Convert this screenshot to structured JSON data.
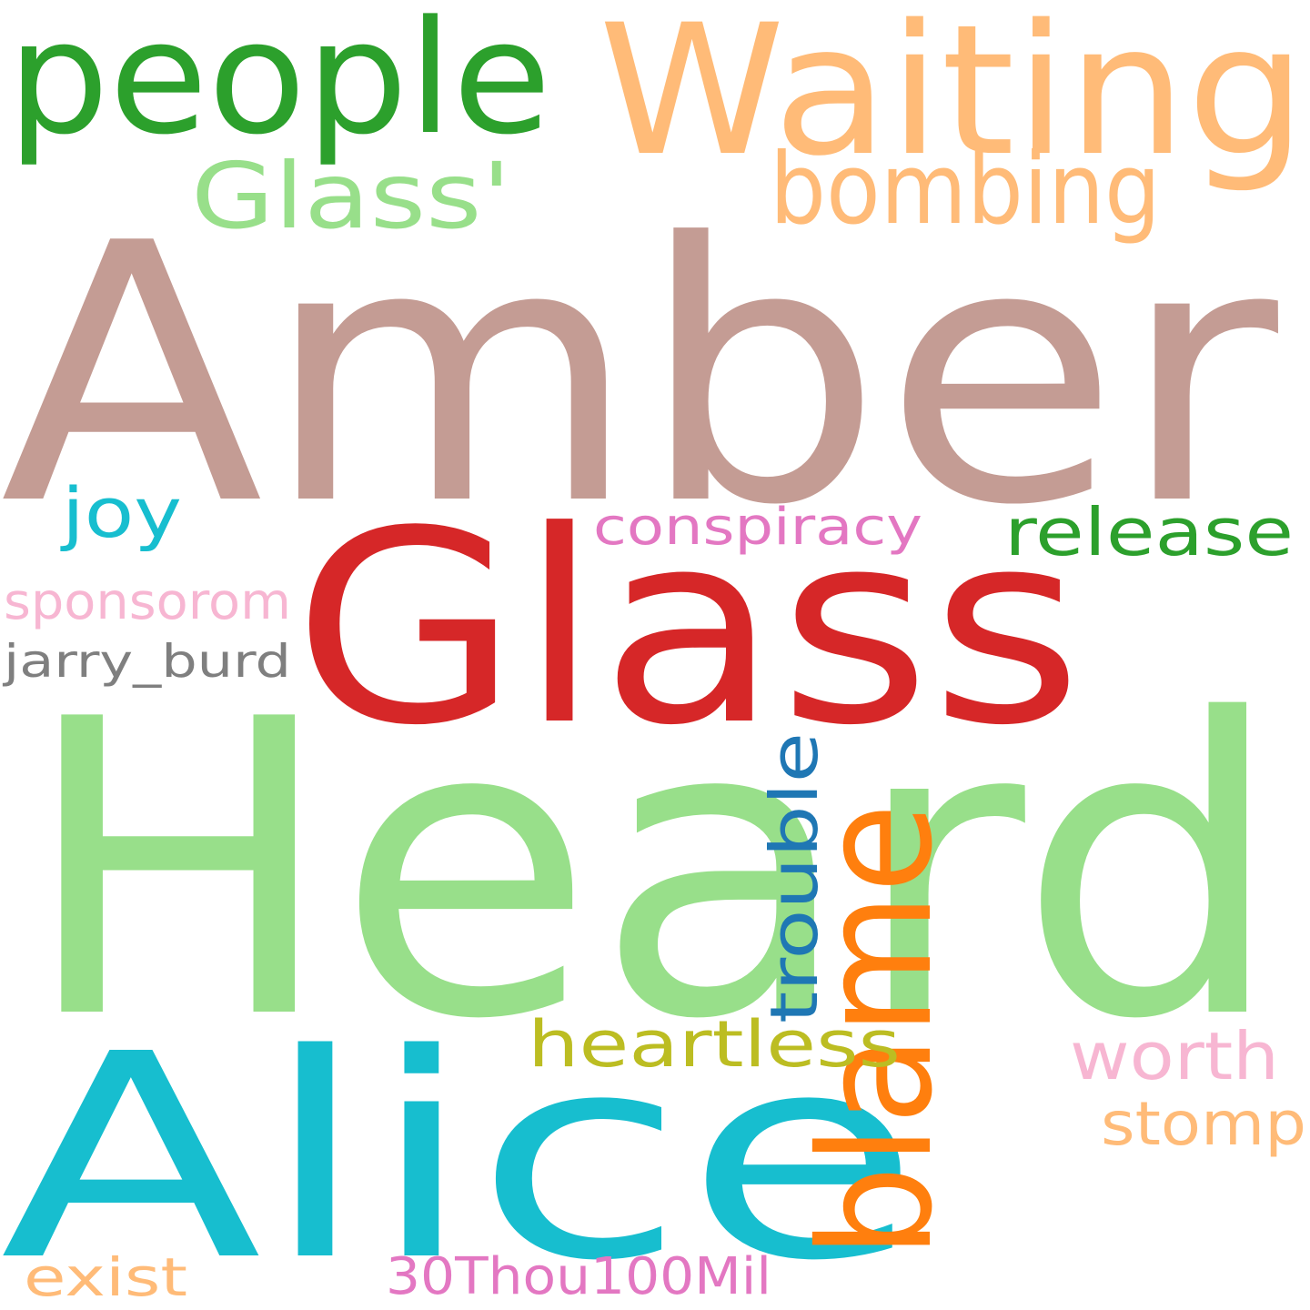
{
  "words": [
    {
      "text": "Amber",
      "color": "#c49c94",
      "orientation": "horizontal"
    },
    {
      "text": "Heard",
      "color": "#98df8a",
      "orientation": "horizontal"
    },
    {
      "text": "Glass",
      "color": "#d62728",
      "orientation": "horizontal"
    },
    {
      "text": "Alice",
      "color": "#17becf",
      "orientation": "horizontal"
    },
    {
      "text": "Waiting",
      "color": "#ffbb78",
      "orientation": "horizontal"
    },
    {
      "text": "people",
      "color": "#2ca02c",
      "orientation": "horizontal"
    },
    {
      "text": "blame",
      "color": "#ff7f0e",
      "orientation": "vertical"
    },
    {
      "text": "bombing",
      "color": "#ffbb78",
      "orientation": "horizontal"
    },
    {
      "text": "Glass'",
      "color": "#98df8a",
      "orientation": "horizontal"
    },
    {
      "text": "trouble",
      "color": "#1f77b4",
      "orientation": "vertical"
    },
    {
      "text": "release",
      "color": "#2ca02c",
      "orientation": "horizontal"
    },
    {
      "text": "heartless",
      "color": "#bcbd22",
      "orientation": "horizontal"
    },
    {
      "text": "worth",
      "color": "#f7b6d2",
      "orientation": "horizontal"
    },
    {
      "text": "joy",
      "color": "#17becf",
      "orientation": "horizontal"
    },
    {
      "text": "conspiracy",
      "color": "#e377c2",
      "orientation": "horizontal"
    },
    {
      "text": "sponsorom",
      "color": "#f7b6d2",
      "orientation": "horizontal"
    },
    {
      "text": "jarry_burd",
      "color": "#7f7f7f",
      "orientation": "horizontal"
    },
    {
      "text": "stomp",
      "color": "#ffbb78",
      "orientation": "horizontal"
    },
    {
      "text": "exist",
      "color": "#ffbb78",
      "orientation": "horizontal"
    },
    {
      "text": "30Thou100Mil",
      "color": "#e377c2",
      "orientation": "horizontal"
    }
  ]
}
